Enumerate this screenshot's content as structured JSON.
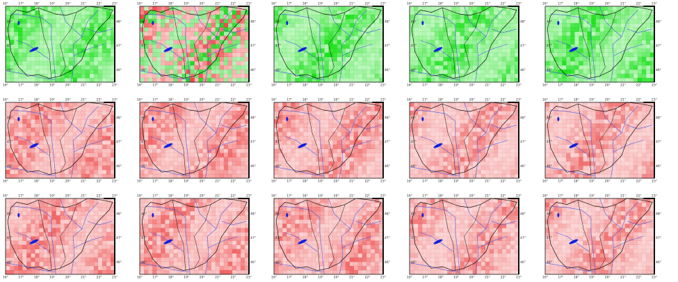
{
  "lon_ticks": [
    "16°",
    "17°",
    "18°",
    "19°",
    "20°",
    "21°",
    "22°",
    "23°"
  ],
  "lat_ticks": [
    "48°",
    "47°",
    "46°"
  ],
  "panels": [
    {
      "colors": [
        "#00dd00",
        "#00dd00"
      ]
    },
    {
      "colors": [
        "#ee3030",
        "#00cc00"
      ]
    },
    {
      "colors": [
        "#00dd00",
        "#00dd00"
      ]
    },
    {
      "colors": [
        "#00dd00",
        "#00dd00"
      ]
    },
    {
      "colors": [
        "#00dd00",
        "#00dd00"
      ]
    },
    {
      "colors": [
        "#ee5050",
        "#ee5050"
      ]
    },
    {
      "colors": [
        "#ee5050",
        "#ee5050"
      ]
    },
    {
      "colors": [
        "#ee5555",
        "#ee5555"
      ]
    },
    {
      "colors": [
        "#ee6060",
        "#ee6060"
      ]
    },
    {
      "colors": [
        "#ee6060",
        "#ee6060"
      ]
    },
    {
      "colors": [
        "#ee5050",
        "#ee5050"
      ]
    },
    {
      "colors": [
        "#ee5050",
        "#ee5050"
      ]
    },
    {
      "colors": [
        "#ee5555",
        "#ee5555"
      ]
    },
    {
      "colors": [
        "#ee6060",
        "#ee6060"
      ]
    },
    {
      "colors": [
        "#ee6060",
        "#ee6060"
      ]
    }
  ]
}
